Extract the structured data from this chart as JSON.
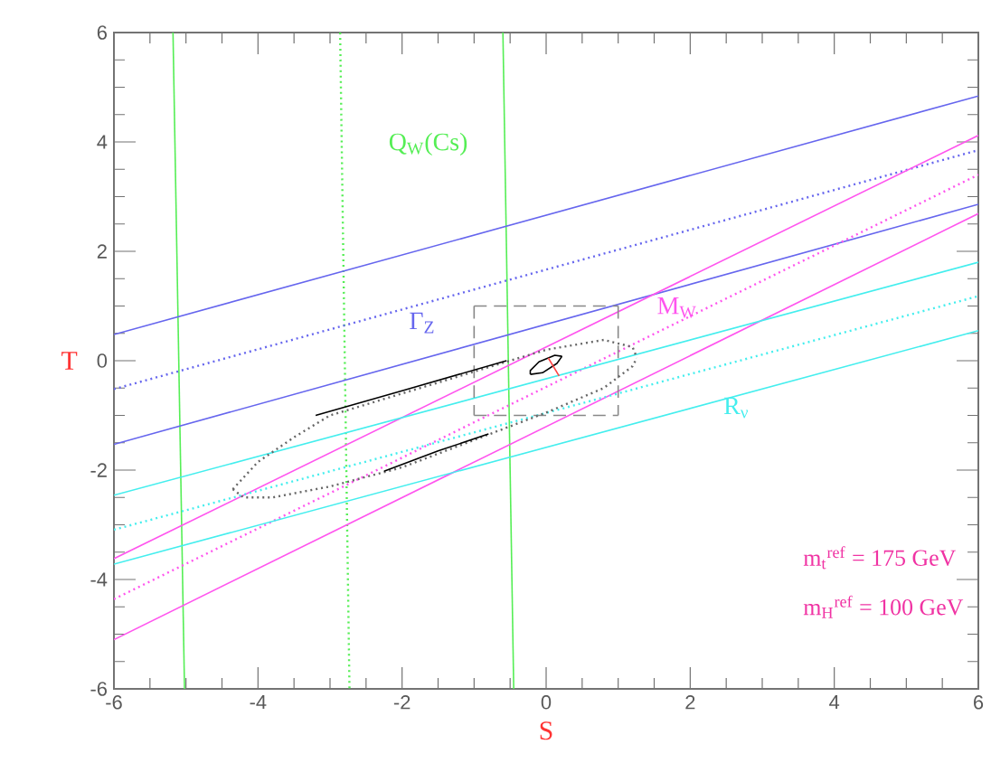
{
  "chart_data": {
    "type": "line",
    "xlabel": "S",
    "ylabel": "T",
    "xlim": [
      -6,
      6
    ],
    "ylim": [
      -6,
      6
    ],
    "xticks": [
      -6,
      -4,
      -2,
      0,
      2,
      4,
      6
    ],
    "yticks": [
      -6,
      -4,
      -2,
      0,
      2,
      4,
      6
    ],
    "grid": false,
    "marker": "none",
    "series": [
      {
        "color": "#55ee55",
        "x": [
          -5.18,
          -5.02
        ],
        "values": [
          6,
          -6
        ]
      },
      {
        "name": "Q$_{W}$(Cs)",
        "color": "#55ee55",
        "line_style": "dotted",
        "x": [
          -2.86,
          -2.73
        ],
        "values": [
          6,
          -6
        ]
      },
      {
        "color": "#55ee55",
        "x": [
          -0.6,
          -0.45
        ],
        "values": [
          6,
          -6
        ]
      },
      {
        "color": "#6666ee",
        "x": [
          -6,
          6
        ],
        "values": [
          0.48,
          4.84
        ]
      },
      {
        "name": "Γ$_{Z}$",
        "color": "#6666ee",
        "line_style": "dotted",
        "x": [
          -6,
          6
        ],
        "values": [
          -0.52,
          3.85
        ]
      },
      {
        "color": "#6666ee",
        "x": [
          -6,
          6
        ],
        "values": [
          -1.53,
          2.86
        ]
      },
      {
        "color": "#ff55ee",
        "x": [
          -6,
          6
        ],
        "values": [
          -3.62,
          4.12
        ]
      },
      {
        "name": "M$_{W}$",
        "color": "#ff55ee",
        "line_style": "dotted",
        "x": [
          -6,
          6
        ],
        "values": [
          -4.36,
          3.4
        ]
      },
      {
        "color": "#ff55ee",
        "x": [
          -6,
          6
        ],
        "values": [
          -5.1,
          2.69
        ]
      },
      {
        "color": "#44eeee",
        "x": [
          -6,
          6
        ],
        "values": [
          -2.46,
          1.8
        ]
      },
      {
        "name": "R$_{ν}$",
        "color": "#44eeee",
        "line_style": "dotted",
        "x": [
          -6,
          6
        ],
        "values": [
          -3.09,
          1.18
        ]
      },
      {
        "color": "#44eeee",
        "x": [
          -6,
          6
        ],
        "values": [
          -3.72,
          0.55
        ]
      },
      {
        "color": "#888888",
        "line_style": "dashed",
        "x": [
          -1,
          1
        ],
        "values": [
          1,
          1
        ]
      },
      {
        "color": "#888888",
        "line_style": "dashed",
        "x": [
          -1,
          1
        ],
        "values": [
          -1,
          -1
        ]
      },
      {
        "color": "#888888",
        "line_style": "dashed",
        "x": [
          -1,
          -1
        ],
        "values": [
          1,
          -1
        ]
      },
      {
        "color": "#888888",
        "line_style": "dashed",
        "x": [
          1,
          1
        ],
        "values": [
          1,
          -1
        ]
      },
      {
        "color": "#666666",
        "line_style": "dotted",
        "x": [
          -4.35,
          -4.0,
          -3.5,
          -3.0,
          -2.0,
          -1.0,
          0,
          0.8,
          1.2,
          1.26
        ],
        "values": [
          -2.35,
          -1.85,
          -1.4,
          -1.0,
          -0.6,
          -0.2,
          0.2,
          0.38,
          0.25,
          0.05
        ]
      },
      {
        "color": "#666666",
        "line_style": "dotted",
        "x": [
          -4.35,
          -4.2,
          -3.8,
          -3,
          -2,
          -1,
          0,
          0.8,
          1.2,
          1.26
        ],
        "values": [
          -2.35,
          -2.5,
          -2.5,
          -2.3,
          -1.95,
          -1.45,
          -0.95,
          -0.5,
          -0.1,
          0.05
        ]
      },
      {
        "color": "#000000",
        "x": [
          -3.2,
          -2,
          -0.55
        ],
        "values": [
          -1.0,
          -0.55,
          0.0
        ]
      },
      {
        "color": "#000000",
        "x": [
          -2.25,
          -1.5,
          -0.8
        ],
        "values": [
          -2.02,
          -1.65,
          -1.34
        ]
      },
      {
        "color": "#000000",
        "x": [
          -0.22,
          -0.22,
          -0.1,
          0.12,
          0.22
        ],
        "values": [
          -0.25,
          -0.18,
          -0.02,
          0.1,
          0.08
        ]
      },
      {
        "color": "#000000",
        "x": [
          -0.22,
          -0.05,
          0.15,
          0.22
        ],
        "values": [
          -0.25,
          -0.22,
          -0.05,
          0.08
        ]
      },
      {
        "color": "#ff4444",
        "x": [
          0.03,
          0.18
        ],
        "values": [
          0.05,
          -0.28
        ]
      }
    ],
    "annotations": [
      "m$_{t}$$^{ref}$ = 175 GeV",
      "m$_{H}$$^{ref}$ = 100 GeV"
    ]
  }
}
